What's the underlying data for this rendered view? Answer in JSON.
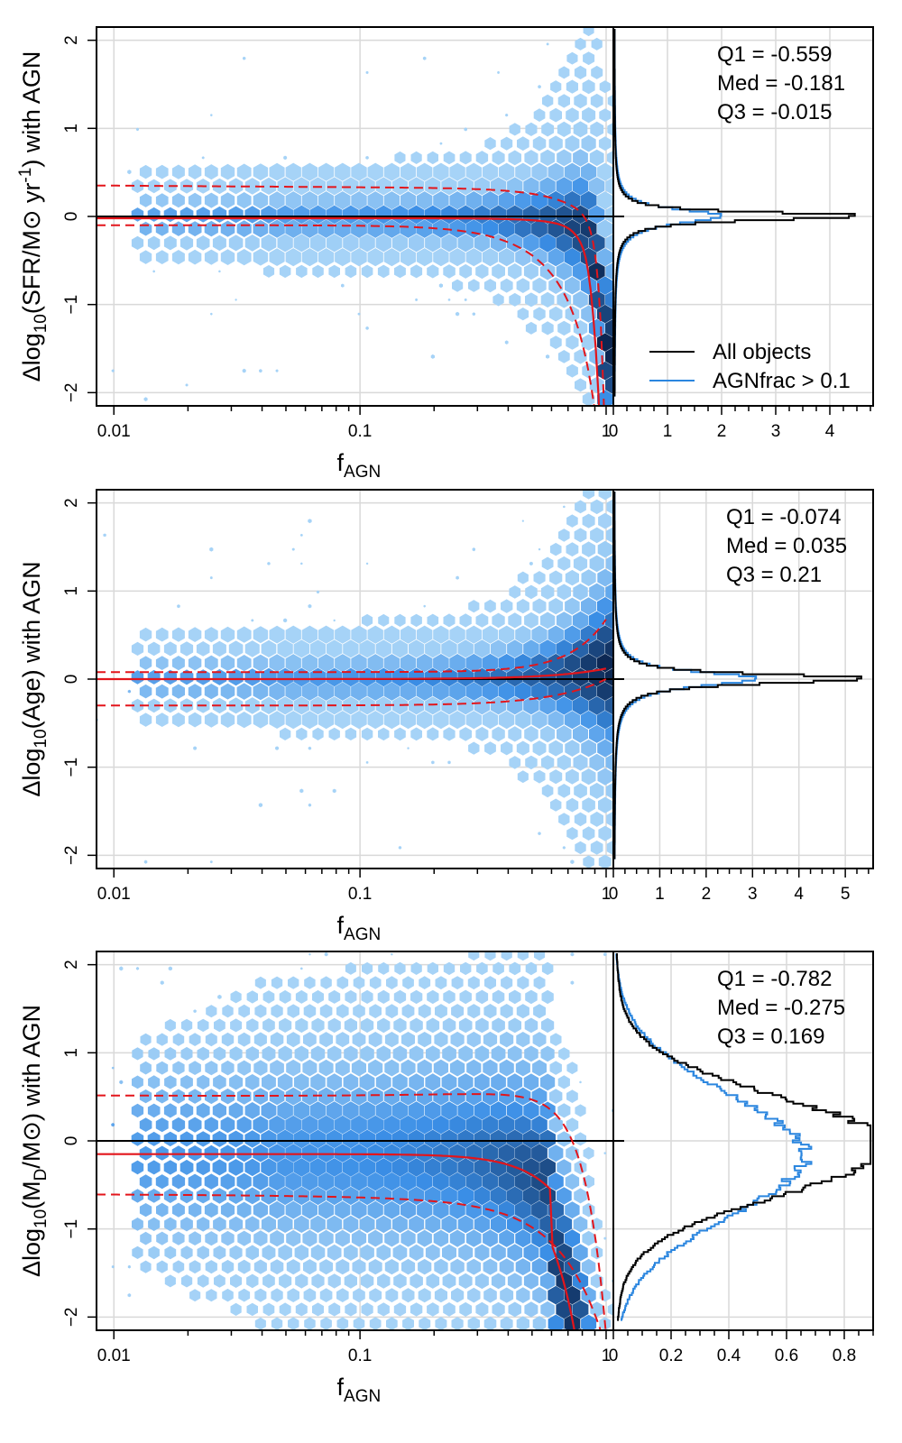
{
  "colors": {
    "hex_light": "#a6d3f7",
    "hex_mid": "#3a8ee6",
    "hex_dark": "#0c2650",
    "fit_line": "#e3151b",
    "all_objects": "#000000",
    "agn_subset": "#2b86df",
    "grid": "#d9d9d9"
  },
  "legend": {
    "all": "All objects",
    "agn": "AGNfrac > 0.1"
  },
  "chart_data": [
    {
      "type": "hexbin-with-histogram",
      "ylabel": {
        "pre": "Δlog",
        "sub1": "10",
        "mid": "(SFR/M",
        "sym": "⊙",
        "post": " yr",
        "sup": "-1",
        "end": ") with AGN"
      },
      "xlabel": {
        "main": "f",
        "sub": "AGN"
      },
      "x_ticks": [
        "0.01",
        "0.1",
        "1"
      ],
      "xlim": [
        0.0085,
        1.07
      ],
      "y_ticks": [
        "−2",
        "−1",
        "0",
        "1",
        "2"
      ],
      "ylim": [
        -2.15,
        2.15
      ],
      "median_curve": {
        "a": -0.25,
        "n": 3.5
      },
      "upper_curve": {
        "base": 0.35,
        "slope": 0.06,
        "drop": -1.0
      },
      "lower_curve": {
        "base": -0.1,
        "a": -1.9,
        "n": 2.5
      },
      "hist_ticks": [
        "0",
        "1",
        "2",
        "3",
        "4"
      ],
      "hist_xlim": [
        0,
        4.8
      ],
      "hist_all": {
        "peak": 4.65,
        "width": 0.05,
        "neg_scale": 1.0
      },
      "hist_agn": {
        "peak": 2.0,
        "width": 0.09,
        "neg_scale": 1.0
      },
      "stats": {
        "q1": "Q1 =  -0.559",
        "med": "Med =  -0.181",
        "q3": "Q3 =  -0.015"
      },
      "show_legend": true
    },
    {
      "type": "hexbin-with-histogram",
      "ylabel": {
        "pre": "Δlog",
        "sub1": "10",
        "mid": "(Age) with AGN"
      },
      "xlabel": {
        "main": "f",
        "sub": "AGN"
      },
      "x_ticks": [
        "0.01",
        "0.1",
        "1"
      ],
      "xlim": [
        0.0085,
        1.07
      ],
      "y_ticks": [
        "−2",
        "−1",
        "0",
        "1",
        "2"
      ],
      "ylim": [
        -2.15,
        2.15
      ],
      "median_curve": {
        "a": 0.12,
        "n": 2.0
      },
      "upper_curve": {
        "base": 0.08,
        "slope": 0.0,
        "drop": 0.6
      },
      "lower_curve": {
        "base": -0.3,
        "a": 0.3,
        "n": 2.0
      },
      "hist_ticks": [
        "0",
        "1",
        "2",
        "3",
        "4",
        "5"
      ],
      "hist_xlim": [
        0,
        5.6
      ],
      "hist_all": {
        "peak": 5.5,
        "width": 0.06,
        "neg_scale": 1.0
      },
      "hist_agn": {
        "peak": 3.1,
        "width": 0.09,
        "neg_scale": 1.0
      },
      "stats": {
        "q1": "Q1 =  -0.074",
        "med": "Med =  0.035",
        "q3": "Q3 =  0.21"
      },
      "show_legend": false
    },
    {
      "type": "hexbin-with-histogram",
      "ylabel": {
        "pre": "Δlog",
        "sub1": "10",
        "mid": "(M",
        "sub2": "D",
        "mid2": "/M",
        "sym": "⊙",
        "end": ") with AGN"
      },
      "xlabel": {
        "main": "f",
        "sub": "AGN"
      },
      "x_ticks": [
        "0.01",
        "0.1",
        "1"
      ],
      "xlim": [
        0.0085,
        1.07
      ],
      "y_ticks": [
        "−2",
        "−1",
        "0",
        "1",
        "2"
      ],
      "ylim": [
        -2.15,
        2.15
      ],
      "median_curve": {
        "a": -1.9,
        "n": 3.0,
        "base": -0.15
      },
      "upper_curve": {
        "base": 0.5,
        "slope": -0.05,
        "drop": -2.0
      },
      "lower_curve": {
        "base": -0.6,
        "a": -1.6,
        "n": 2.5
      },
      "hist_ticks": [
        "0",
        "0.2",
        "0.4",
        "0.6",
        "0.8"
      ],
      "hist_xlim": [
        0,
        0.9
      ],
      "hist_all": {
        "peak": 0.87,
        "width": 0.55,
        "neg_scale": 1.0,
        "gauss": true
      },
      "hist_agn": {
        "peak": 0.6,
        "width": 0.7,
        "neg_scale": 1.0,
        "gauss": true,
        "center": -0.15
      },
      "stats": {
        "q1": "Q1 =  -0.782",
        "med": "Med =  -0.275",
        "q3": "Q3 =  0.169"
      },
      "show_legend": false
    }
  ]
}
